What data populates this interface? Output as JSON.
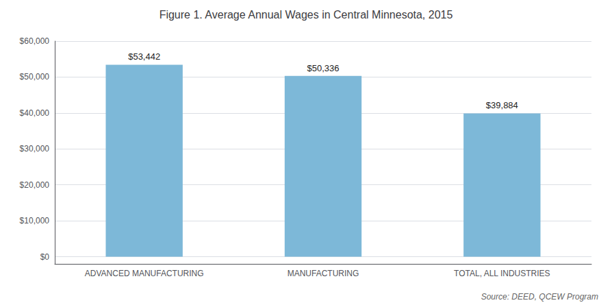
{
  "chart_data": {
    "type": "bar",
    "title": "Figure 1. Average Annual Wages in Central Minnesota, 2015",
    "annotations": [
      "Source: DEED, QCEW Program"
    ],
    "categories": [
      "ADVANCED MANUFACTURING",
      "MANUFACTURING",
      "TOTAL, ALL INDUSTRIES"
    ],
    "values": [
      53442,
      50336,
      39884
    ],
    "value_labels": [
      "$53,442",
      "$50,336",
      "$39,884"
    ],
    "data_labels": true,
    "color": "#7db8d8",
    "ylim": [
      -2000,
      60000
    ],
    "yticks": [
      {
        "value": 0,
        "label": "$0"
      },
      {
        "value": 10000,
        "label": "$10,000"
      },
      {
        "value": 20000,
        "label": "$20,000"
      },
      {
        "value": 30000,
        "label": "$30,000"
      },
      {
        "value": 40000,
        "label": "$40,000"
      },
      {
        "value": 50000,
        "label": "$50,000"
      },
      {
        "value": 60000,
        "label": "$60,000"
      }
    ],
    "grid": true
  }
}
